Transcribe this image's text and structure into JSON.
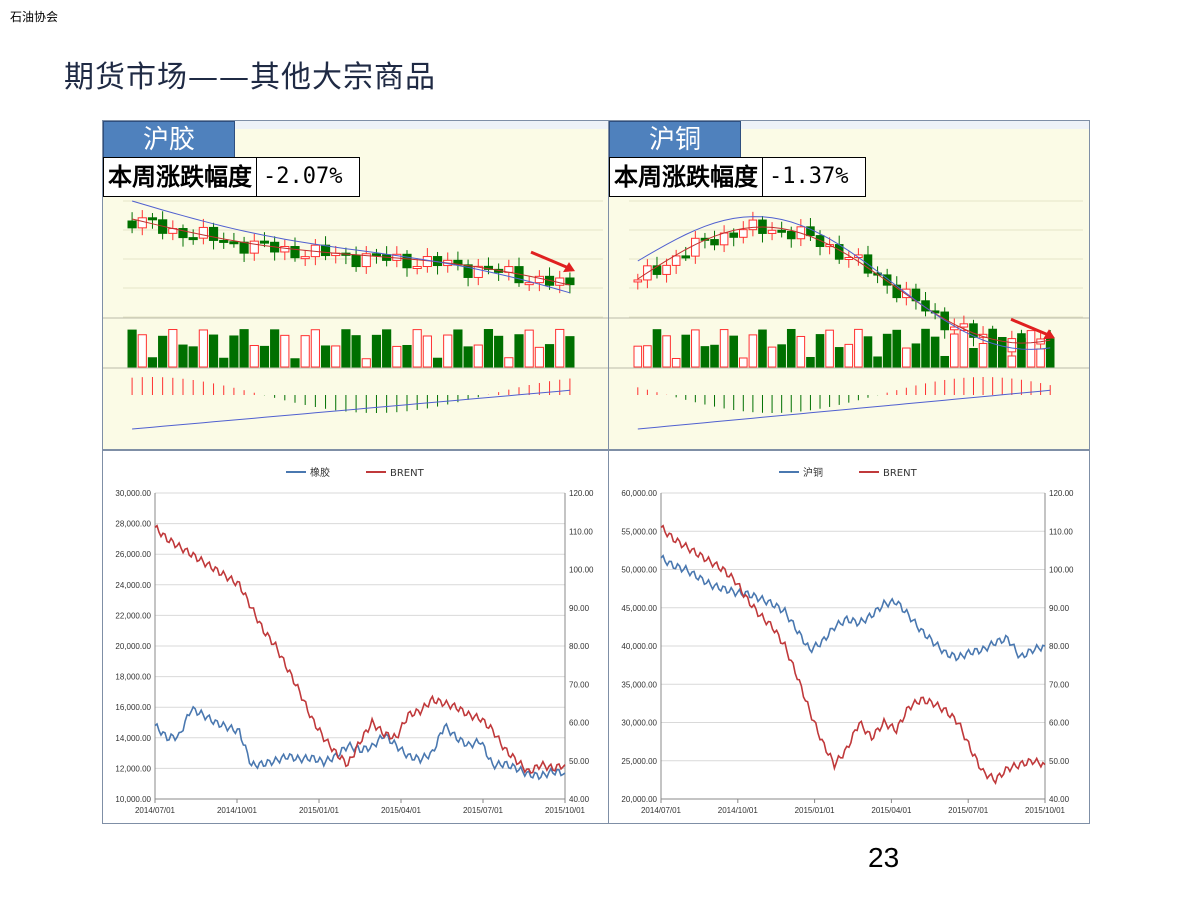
{
  "org_label": "石油协会",
  "title": "期货市场——其他大宗商品",
  "page_number": "23",
  "colors": {
    "up": "#ff3030",
    "down": "#007000",
    "label_bg": "#4f81bd",
    "rubber": "#4a78b0",
    "brent": "#c0393b"
  },
  "panels": [
    {
      "label": "沪胶",
      "change_label": "本周涨跌幅度",
      "change_value": "-2.07%",
      "trend": "down"
    },
    {
      "label": "沪铜",
      "change_label": "本周涨跌幅度",
      "change_value": "-1.37%",
      "trend": "down"
    }
  ],
  "chart_data": [
    {
      "type": "line",
      "series": [
        {
          "name": "橡胶",
          "axis": "left"
        },
        {
          "name": "BRENT",
          "axis": "right"
        }
      ],
      "x_ticks": [
        "2014/07/01",
        "2014/10/01",
        "2015/01/01",
        "2015/04/01",
        "2015/07/01",
        "2015/10/01"
      ],
      "yleft_ticks": [
        "10,000.00",
        "12,000.00",
        "14,000.00",
        "16,000.00",
        "18,000.00",
        "20,000.00",
        "22,000.00",
        "24,000.00",
        "26,000.00",
        "28,000.00",
        "30,000.00"
      ],
      "yright_ticks": [
        "40.00",
        "50.00",
        "60.00",
        "70.00",
        "80.00",
        "90.00",
        "100.00",
        "110.00",
        "120.00"
      ],
      "yleft_range": [
        10000,
        30000
      ],
      "yright_range": [
        40,
        120
      ],
      "left_values": [
        14800,
        14000,
        14100,
        15900,
        15500,
        15000,
        14700,
        14400,
        12200,
        12300,
        12500,
        12800,
        12600,
        12700,
        12400,
        12800,
        13500,
        13200,
        13400,
        14200,
        13500,
        12800,
        12600,
        13000,
        14800,
        14000,
        13500,
        13800,
        12200,
        12300,
        12000,
        11600,
        11500,
        11800,
        11700
      ],
      "right_values": [
        111,
        108,
        106,
        104,
        102,
        100,
        98,
        96,
        90,
        84,
        80,
        74,
        68,
        61,
        56,
        52,
        49,
        55,
        60,
        57,
        56,
        62,
        63,
        66,
        65,
        64,
        62,
        61,
        58,
        53,
        50,
        47,
        49,
        48,
        49
      ]
    },
    {
      "type": "line",
      "series": [
        {
          "name": "沪铜",
          "axis": "left"
        },
        {
          "name": "BRENT",
          "axis": "right"
        }
      ],
      "x_ticks": [
        "2014/07/01",
        "2014/10/01",
        "2015/01/01",
        "2015/04/01",
        "2015/07/01",
        "2015/10/01"
      ],
      "yleft_ticks": [
        "20,000.00",
        "25,000.00",
        "30,000.00",
        "35,000.00",
        "40,000.00",
        "45,000.00",
        "50,000.00",
        "55,000.00",
        "60,000.00"
      ],
      "yright_ticks": [
        "40.00",
        "50.00",
        "60.00",
        "70.00",
        "80.00",
        "90.00",
        "100.00",
        "110.00",
        "120.00"
      ],
      "yleft_range": [
        20000,
        60000
      ],
      "yright_range": [
        40,
        120
      ],
      "left_values": [
        51500,
        50500,
        50000,
        49000,
        48000,
        47500,
        47000,
        46800,
        46200,
        45500,
        44500,
        42000,
        39500,
        40500,
        42500,
        43500,
        43000,
        44000,
        45500,
        45800,
        44000,
        42000,
        40500,
        39000,
        38500,
        39200,
        39500,
        40500,
        41000,
        38500,
        39500,
        40000
      ],
      "right_values": [
        111,
        108,
        106,
        104,
        102,
        100,
        97,
        92,
        88,
        85,
        80,
        72,
        63,
        55,
        49,
        53,
        60,
        56,
        60,
        58,
        64,
        66,
        65,
        63,
        60,
        53,
        47,
        45,
        48,
        49,
        50,
        49
      ]
    }
  ]
}
